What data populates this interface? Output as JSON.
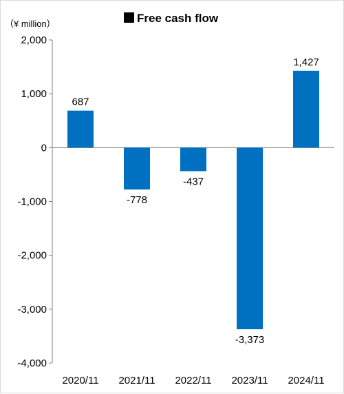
{
  "chart_data": {
    "type": "bar",
    "title": "Free cash flow",
    "unit_label": "（¥ million）",
    "categories": [
      "2020/11",
      "2021/11",
      "2022/11",
      "2023/11",
      "2024/11"
    ],
    "values": [
      687,
      -778,
      -437,
      -3373,
      1427
    ],
    "value_labels": [
      "687",
      "-778",
      "-437",
      "-3,373",
      "1,427"
    ],
    "ylim": [
      -4000,
      2000
    ],
    "yticks": [
      2000,
      1000,
      0,
      -1000,
      -2000,
      -3000,
      -4000
    ],
    "ytick_labels": [
      "2,000",
      "1,000",
      "0",
      "-1,000",
      "-2,000",
      "-3,000",
      "-4,000"
    ],
    "bar_color": "#0070C0",
    "legend_marker_color": "#000000",
    "grid": false
  }
}
